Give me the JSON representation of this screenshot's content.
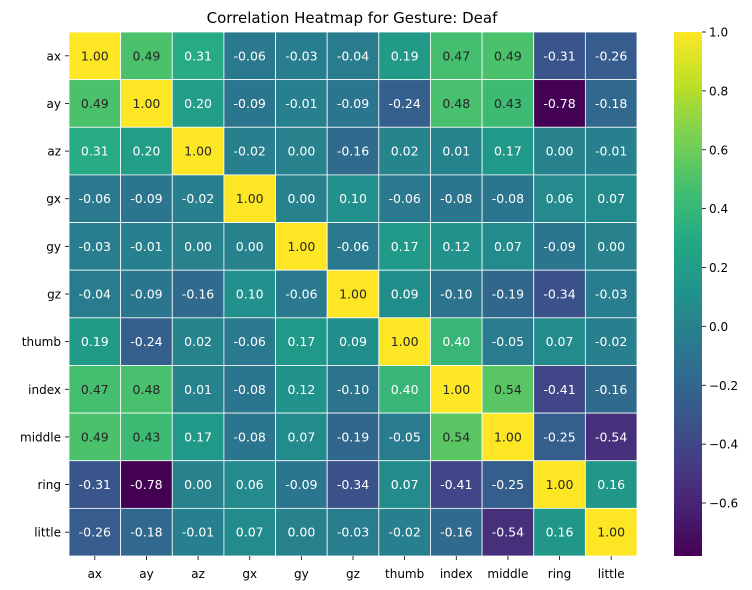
{
  "chart_data": {
    "type": "heatmap",
    "title": "Correlation Heatmap for Gesture: Deaf",
    "xlabel": "",
    "ylabel": "",
    "x_labels": [
      "ax",
      "ay",
      "az",
      "gx",
      "gy",
      "gz",
      "thumb",
      "index",
      "middle",
      "ring",
      "little"
    ],
    "y_labels": [
      "ax",
      "ay",
      "az",
      "gx",
      "gy",
      "gz",
      "thumb",
      "index",
      "middle",
      "ring",
      "little"
    ],
    "values": [
      [
        1.0,
        0.49,
        0.31,
        -0.06,
        -0.03,
        -0.04,
        0.19,
        0.47,
        0.49,
        -0.31,
        -0.26
      ],
      [
        0.49,
        1.0,
        0.2,
        -0.09,
        -0.01,
        -0.09,
        -0.24,
        0.48,
        0.43,
        -0.78,
        -0.18
      ],
      [
        0.31,
        0.2,
        1.0,
        -0.02,
        0.0,
        -0.16,
        0.02,
        0.01,
        0.17,
        0.0,
        -0.01
      ],
      [
        -0.06,
        -0.09,
        -0.02,
        1.0,
        0.0,
        0.1,
        -0.06,
        -0.08,
        -0.08,
        0.06,
        0.07
      ],
      [
        -0.03,
        -0.01,
        0.0,
        0.0,
        1.0,
        -0.06,
        0.17,
        0.12,
        0.07,
        -0.09,
        0.0
      ],
      [
        -0.04,
        -0.09,
        -0.16,
        0.1,
        -0.06,
        1.0,
        0.09,
        -0.1,
        -0.19,
        -0.34,
        -0.03
      ],
      [
        0.19,
        -0.24,
        0.02,
        -0.06,
        0.17,
        0.09,
        1.0,
        0.4,
        -0.05,
        0.07,
        -0.02
      ],
      [
        0.47,
        0.48,
        0.01,
        -0.08,
        0.12,
        -0.1,
        0.4,
        1.0,
        0.54,
        -0.41,
        -0.16
      ],
      [
        0.49,
        0.43,
        0.17,
        -0.08,
        0.07,
        -0.19,
        -0.05,
        0.54,
        1.0,
        -0.25,
        -0.54
      ],
      [
        -0.31,
        -0.78,
        0.0,
        0.06,
        -0.09,
        -0.34,
        0.07,
        -0.41,
        -0.25,
        1.0,
        0.16
      ],
      [
        -0.26,
        -0.18,
        -0.01,
        0.07,
        0.0,
        -0.03,
        -0.02,
        -0.16,
        -0.54,
        0.16,
        1.0
      ]
    ],
    "colormap": "viridis",
    "vmin": -0.78,
    "vmax": 1.0,
    "colorbar_ticks": [
      1.0,
      0.8,
      0.6,
      0.4,
      0.2,
      0.0,
      -0.2,
      -0.4,
      -0.6
    ],
    "colorbar_tick_labels": [
      "1.0",
      "0.8",
      "0.6",
      "0.4",
      "0.2",
      "0.0",
      "−0.2",
      "−0.4",
      "−0.6"
    ],
    "annotation_format": "0.00",
    "cell_border_color": "#ffffff"
  }
}
